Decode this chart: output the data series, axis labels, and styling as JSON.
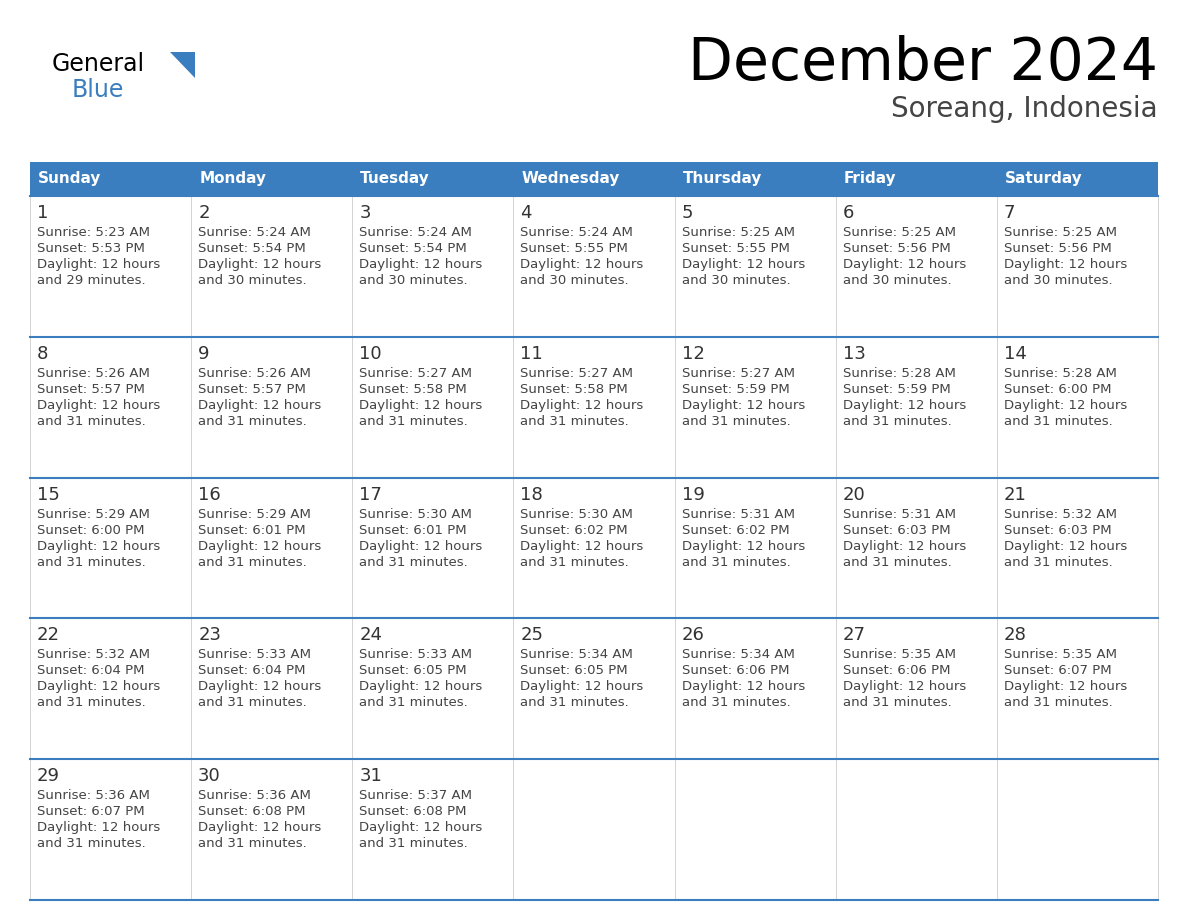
{
  "title": "December 2024",
  "subtitle": "Soreang, Indonesia",
  "header_color": "#3A7EBF",
  "header_text_color": "#FFFFFF",
  "grid_line_color": "#3A7EBF",
  "cell_line_color": "#AAAAAA",
  "text_color": "#444444",
  "day_headers": [
    "Sunday",
    "Monday",
    "Tuesday",
    "Wednesday",
    "Thursday",
    "Friday",
    "Saturday"
  ],
  "days": [
    {
      "day": 1,
      "col": 0,
      "row": 0,
      "sunrise": "5:23 AM",
      "sunset": "5:53 PM",
      "daylight_h": "12 hours",
      "daylight_m": "and 29 minutes."
    },
    {
      "day": 2,
      "col": 1,
      "row": 0,
      "sunrise": "5:24 AM",
      "sunset": "5:54 PM",
      "daylight_h": "12 hours",
      "daylight_m": "and 30 minutes."
    },
    {
      "day": 3,
      "col": 2,
      "row": 0,
      "sunrise": "5:24 AM",
      "sunset": "5:54 PM",
      "daylight_h": "12 hours",
      "daylight_m": "and 30 minutes."
    },
    {
      "day": 4,
      "col": 3,
      "row": 0,
      "sunrise": "5:24 AM",
      "sunset": "5:55 PM",
      "daylight_h": "12 hours",
      "daylight_m": "and 30 minutes."
    },
    {
      "day": 5,
      "col": 4,
      "row": 0,
      "sunrise": "5:25 AM",
      "sunset": "5:55 PM",
      "daylight_h": "12 hours",
      "daylight_m": "and 30 minutes."
    },
    {
      "day": 6,
      "col": 5,
      "row": 0,
      "sunrise": "5:25 AM",
      "sunset": "5:56 PM",
      "daylight_h": "12 hours",
      "daylight_m": "and 30 minutes."
    },
    {
      "day": 7,
      "col": 6,
      "row": 0,
      "sunrise": "5:25 AM",
      "sunset": "5:56 PM",
      "daylight_h": "12 hours",
      "daylight_m": "and 30 minutes."
    },
    {
      "day": 8,
      "col": 0,
      "row": 1,
      "sunrise": "5:26 AM",
      "sunset": "5:57 PM",
      "daylight_h": "12 hours",
      "daylight_m": "and 31 minutes."
    },
    {
      "day": 9,
      "col": 1,
      "row": 1,
      "sunrise": "5:26 AM",
      "sunset": "5:57 PM",
      "daylight_h": "12 hours",
      "daylight_m": "and 31 minutes."
    },
    {
      "day": 10,
      "col": 2,
      "row": 1,
      "sunrise": "5:27 AM",
      "sunset": "5:58 PM",
      "daylight_h": "12 hours",
      "daylight_m": "and 31 minutes."
    },
    {
      "day": 11,
      "col": 3,
      "row": 1,
      "sunrise": "5:27 AM",
      "sunset": "5:58 PM",
      "daylight_h": "12 hours",
      "daylight_m": "and 31 minutes."
    },
    {
      "day": 12,
      "col": 4,
      "row": 1,
      "sunrise": "5:27 AM",
      "sunset": "5:59 PM",
      "daylight_h": "12 hours",
      "daylight_m": "and 31 minutes."
    },
    {
      "day": 13,
      "col": 5,
      "row": 1,
      "sunrise": "5:28 AM",
      "sunset": "5:59 PM",
      "daylight_h": "12 hours",
      "daylight_m": "and 31 minutes."
    },
    {
      "day": 14,
      "col": 6,
      "row": 1,
      "sunrise": "5:28 AM",
      "sunset": "6:00 PM",
      "daylight_h": "12 hours",
      "daylight_m": "and 31 minutes."
    },
    {
      "day": 15,
      "col": 0,
      "row": 2,
      "sunrise": "5:29 AM",
      "sunset": "6:00 PM",
      "daylight_h": "12 hours",
      "daylight_m": "and 31 minutes."
    },
    {
      "day": 16,
      "col": 1,
      "row": 2,
      "sunrise": "5:29 AM",
      "sunset": "6:01 PM",
      "daylight_h": "12 hours",
      "daylight_m": "and 31 minutes."
    },
    {
      "day": 17,
      "col": 2,
      "row": 2,
      "sunrise": "5:30 AM",
      "sunset": "6:01 PM",
      "daylight_h": "12 hours",
      "daylight_m": "and 31 minutes."
    },
    {
      "day": 18,
      "col": 3,
      "row": 2,
      "sunrise": "5:30 AM",
      "sunset": "6:02 PM",
      "daylight_h": "12 hours",
      "daylight_m": "and 31 minutes."
    },
    {
      "day": 19,
      "col": 4,
      "row": 2,
      "sunrise": "5:31 AM",
      "sunset": "6:02 PM",
      "daylight_h": "12 hours",
      "daylight_m": "and 31 minutes."
    },
    {
      "day": 20,
      "col": 5,
      "row": 2,
      "sunrise": "5:31 AM",
      "sunset": "6:03 PM",
      "daylight_h": "12 hours",
      "daylight_m": "and 31 minutes."
    },
    {
      "day": 21,
      "col": 6,
      "row": 2,
      "sunrise": "5:32 AM",
      "sunset": "6:03 PM",
      "daylight_h": "12 hours",
      "daylight_m": "and 31 minutes."
    },
    {
      "day": 22,
      "col": 0,
      "row": 3,
      "sunrise": "5:32 AM",
      "sunset": "6:04 PM",
      "daylight_h": "12 hours",
      "daylight_m": "and 31 minutes."
    },
    {
      "day": 23,
      "col": 1,
      "row": 3,
      "sunrise": "5:33 AM",
      "sunset": "6:04 PM",
      "daylight_h": "12 hours",
      "daylight_m": "and 31 minutes."
    },
    {
      "day": 24,
      "col": 2,
      "row": 3,
      "sunrise": "5:33 AM",
      "sunset": "6:05 PM",
      "daylight_h": "12 hours",
      "daylight_m": "and 31 minutes."
    },
    {
      "day": 25,
      "col": 3,
      "row": 3,
      "sunrise": "5:34 AM",
      "sunset": "6:05 PM",
      "daylight_h": "12 hours",
      "daylight_m": "and 31 minutes."
    },
    {
      "day": 26,
      "col": 4,
      "row": 3,
      "sunrise": "5:34 AM",
      "sunset": "6:06 PM",
      "daylight_h": "12 hours",
      "daylight_m": "and 31 minutes."
    },
    {
      "day": 27,
      "col": 5,
      "row": 3,
      "sunrise": "5:35 AM",
      "sunset": "6:06 PM",
      "daylight_h": "12 hours",
      "daylight_m": "and 31 minutes."
    },
    {
      "day": 28,
      "col": 6,
      "row": 3,
      "sunrise": "5:35 AM",
      "sunset": "6:07 PM",
      "daylight_h": "12 hours",
      "daylight_m": "and 31 minutes."
    },
    {
      "day": 29,
      "col": 0,
      "row": 4,
      "sunrise": "5:36 AM",
      "sunset": "6:07 PM",
      "daylight_h": "12 hours",
      "daylight_m": "and 31 minutes."
    },
    {
      "day": 30,
      "col": 1,
      "row": 4,
      "sunrise": "5:36 AM",
      "sunset": "6:08 PM",
      "daylight_h": "12 hours",
      "daylight_m": "and 31 minutes."
    },
    {
      "day": 31,
      "col": 2,
      "row": 4,
      "sunrise": "5:37 AM",
      "sunset": "6:08 PM",
      "daylight_h": "12 hours",
      "daylight_m": "and 31 minutes."
    }
  ]
}
